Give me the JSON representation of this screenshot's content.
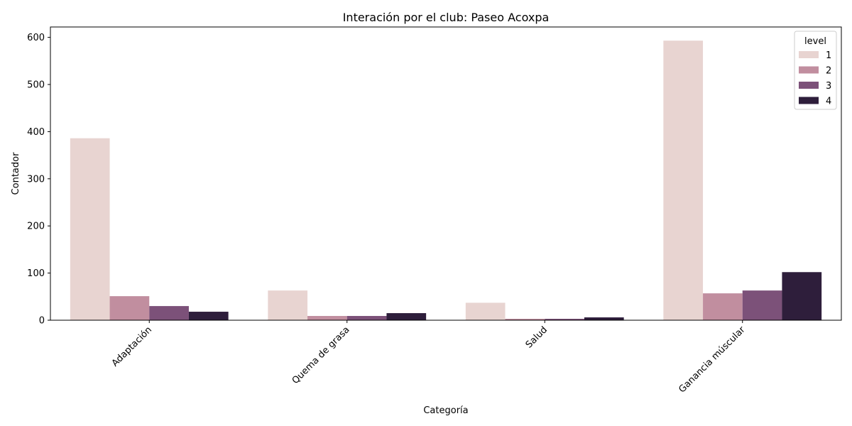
{
  "chart_data": {
    "type": "bar",
    "title": "Interación por el club: Paseo Acoxpa",
    "xlabel": "Categoría",
    "ylabel": "Contador",
    "categories": [
      "Adaptación",
      "Quema de grasa",
      "Salud",
      "Ganancia múscular"
    ],
    "ylim": [
      0,
      622
    ],
    "yticks": [
      0,
      100,
      200,
      300,
      400,
      500,
      600
    ],
    "grid": false,
    "legend": {
      "title": "level",
      "position": "top-right"
    },
    "series": [
      {
        "name": "1",
        "color": "#e8d4d1",
        "values": [
          386,
          63,
          37,
          593
        ]
      },
      {
        "name": "2",
        "color": "#c18e9f",
        "values": [
          51,
          9,
          3,
          57
        ]
      },
      {
        "name": "3",
        "color": "#7c5179",
        "values": [
          30,
          9,
          3,
          63
        ]
      },
      {
        "name": "4",
        "color": "#2e1e3b",
        "values": [
          18,
          15,
          6,
          102
        ]
      }
    ]
  }
}
